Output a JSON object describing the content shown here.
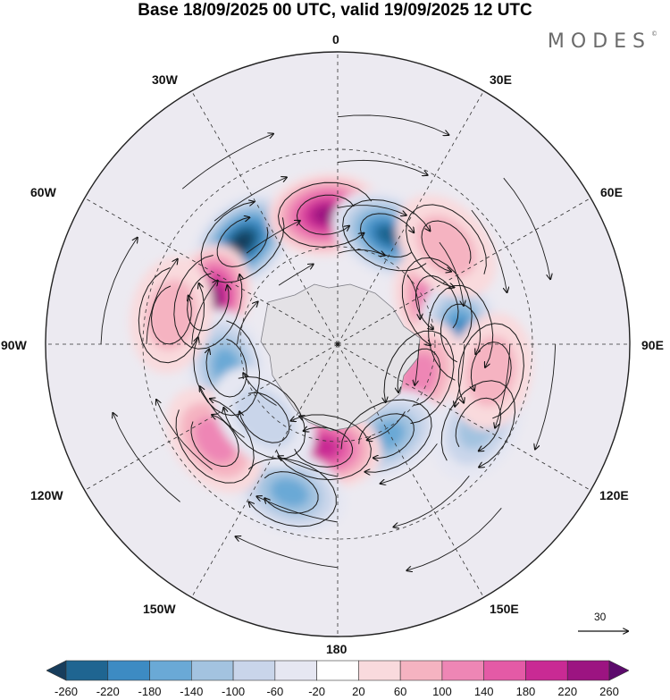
{
  "title": "Base 18/09/2025 00 UTC, valid 19/09/2025 12 UTC",
  "brand": "MODES",
  "brand_mark": "©",
  "longitude_labels": {
    "l0": "0",
    "l30e": "30E",
    "l60e": "60E",
    "l90e": "90E",
    "l120e": "120E",
    "l150e": "150E",
    "l180": "180",
    "l150w": "150W",
    "l120w": "120W",
    "l90w": "90W",
    "l60w": "60W",
    "l30w": "30W"
  },
  "reference_vector": {
    "label": "30"
  },
  "colorbar": {
    "colors": [
      "#173d5c",
      "#1f6591",
      "#3d8bc3",
      "#6aa9d6",
      "#a3c3e0",
      "#c9d5ea",
      "#e6e7f2",
      "#ffffff",
      "#f9dadd",
      "#f5b3c1",
      "#ee86b5",
      "#e45aa6",
      "#c92a94",
      "#9c1481",
      "#5c0a6c"
    ],
    "labels": [
      "-260",
      "-220",
      "-180",
      "-140",
      "-100",
      "-60",
      "-20",
      "20",
      "60",
      "100",
      "140",
      "180",
      "220",
      "260"
    ]
  },
  "anomaly_cells": [
    {
      "name": "low-60w-45w",
      "value": -260,
      "lat": -47,
      "lon": -43
    },
    {
      "name": "high-15w-0",
      "value": 240,
      "lat": -50,
      "lon": -5
    },
    {
      "name": "low-20e-30e",
      "value": -240,
      "lat": -53,
      "lon": 25
    },
    {
      "name": "high-75w-60w",
      "value": 260,
      "lat": -48,
      "lon": -72
    },
    {
      "name": "low-95w-110w",
      "value": -160,
      "lat": -55,
      "lon": -102
    },
    {
      "name": "high-60e-80e",
      "value": 140,
      "lat": -57,
      "lon": 68
    },
    {
      "name": "low-85e-95e",
      "value": -180,
      "lat": -52,
      "lon": 85
    },
    {
      "name": "high-45e-55e",
      "value": 60,
      "lat": -45,
      "lon": 48
    },
    {
      "name": "high-100e-115e",
      "value": 100,
      "lat": -63,
      "lon": 112
    },
    {
      "name": "low-145e-155e",
      "value": -160,
      "lat": -58,
      "lon": 152
    },
    {
      "name": "high-165w-175w",
      "value": 180,
      "lat": -58,
      "lon": -172
    },
    {
      "name": "low-150w-160w",
      "value": -140,
      "lat": -42,
      "lon": -162
    },
    {
      "name": "high-125w-135w",
      "value": 100,
      "lat": -42,
      "lon": -128
    },
    {
      "name": "low-115e-125e",
      "value": -100,
      "lat": -40,
      "lon": 120
    },
    {
      "name": "high-100e",
      "value": 80,
      "lat": -42,
      "lon": 100
    },
    {
      "name": "low-130w-140w",
      "value": -60,
      "lat": -58,
      "lon": -135
    },
    {
      "name": "high-80w-90w",
      "value": 60,
      "lat": -38,
      "lon": -80
    }
  ]
}
